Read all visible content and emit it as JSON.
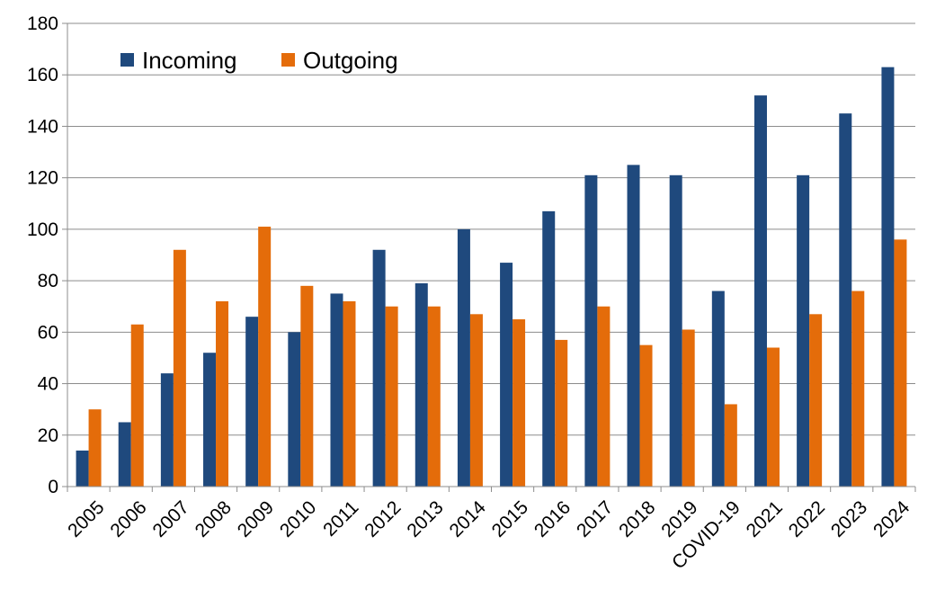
{
  "chart_data": {
    "type": "bar",
    "categories": [
      "2005",
      "2006",
      "2007",
      "2008",
      "2009",
      "2010",
      "2011",
      "2012",
      "2013",
      "2014",
      "2015",
      "2016",
      "2017",
      "2018",
      "2019",
      "COVID-19",
      "2021",
      "2022",
      "2023",
      "2024"
    ],
    "series": [
      {
        "name": "Incoming",
        "color": "#1F497D",
        "values": [
          14,
          25,
          44,
          52,
          66,
          60,
          75,
          92,
          79,
          100,
          87,
          107,
          121,
          125,
          121,
          76,
          152,
          121,
          145,
          163
        ]
      },
      {
        "name": "Outgoing",
        "color": "#E46C0A",
        "values": [
          30,
          63,
          92,
          72,
          101,
          78,
          72,
          70,
          70,
          67,
          65,
          57,
          70,
          55,
          61,
          32,
          54,
          67,
          76,
          96
        ]
      }
    ],
    "ylim": [
      0,
      180
    ],
    "yticks": [
      "0",
      "20",
      "40",
      "60",
      "80",
      "100",
      "120",
      "140",
      "160",
      "180"
    ],
    "grid": true,
    "legend": "top-left",
    "title": "",
    "xlabel": "",
    "ylabel": ""
  }
}
